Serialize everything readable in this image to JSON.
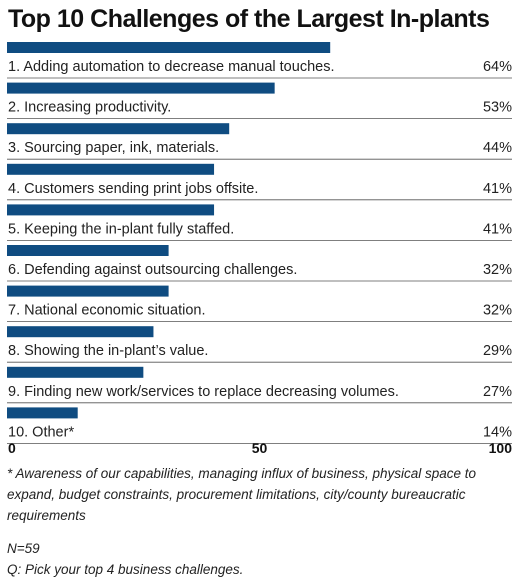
{
  "chart_data": {
    "type": "bar",
    "title": "Top 10 Challenges of the Largest In-plants",
    "categories": [
      "1. Adding automation to decrease manual touches.",
      "2. Increasing productivity.",
      "3. Sourcing paper, ink, materials.",
      "4. Customers sending print jobs offsite.",
      "5. Keeping the in-plant fully staffed.",
      "6. Defending against outsourcing challenges.",
      "7. National economic situation.",
      "8. Showing the  in-plant’s value.",
      "9. Finding new work/services to replace decreasing volumes.",
      "10. Other*"
    ],
    "values": [
      64,
      53,
      44,
      41,
      41,
      32,
      32,
      29,
      27,
      14
    ],
    "value_labels": [
      "64%",
      "53%",
      "44%",
      "41%",
      "41%",
      "32%",
      "32%",
      "29%",
      "27%",
      "14%"
    ],
    "xlim": [
      0,
      100
    ],
    "x_ticks": [
      "0",
      "50",
      "100"
    ],
    "bar_color": "#0f4c81",
    "grid": false
  },
  "footnote": "* Awareness of our capabilities, managing influx of business, physical space to expand, budget constraints, procurement limitations, city/county bureaucratic requirements",
  "sample_size": "N=59",
  "question": "Q: Pick your top 4 business challenges."
}
